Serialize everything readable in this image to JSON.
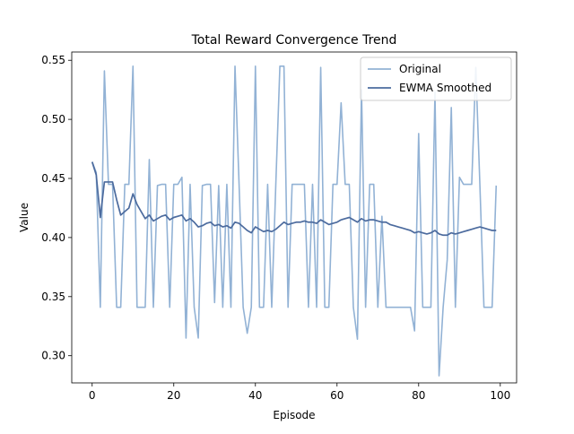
{
  "chart_data": {
    "type": "line",
    "title": "Total Reward Convergence Trend",
    "xlabel": "Episode",
    "ylabel": "Value",
    "xlim": [
      -5,
      104
    ],
    "ylim": [
      0.277,
      0.557
    ],
    "xticks": [
      0,
      20,
      40,
      60,
      80,
      100
    ],
    "xtick_labels": [
      "0",
      "20",
      "40",
      "60",
      "80",
      "100"
    ],
    "yticks": [
      0.3,
      0.35,
      0.4,
      0.45,
      0.5,
      0.55
    ],
    "ytick_labels": [
      "0.30",
      "0.35",
      "0.40",
      "0.45",
      "0.50",
      "0.55"
    ],
    "grid": false,
    "legend": "top-right",
    "series": [
      {
        "name": "Original",
        "color": "#92b2d5",
        "x": [
          0,
          1,
          2,
          3,
          4,
          5,
          6,
          7,
          8,
          9,
          10,
          11,
          12,
          13,
          14,
          15,
          16,
          17,
          18,
          19,
          20,
          21,
          22,
          23,
          24,
          25,
          26,
          27,
          28,
          29,
          30,
          31,
          32,
          33,
          34,
          35,
          36,
          37,
          38,
          39,
          40,
          41,
          42,
          43,
          44,
          45,
          46,
          47,
          48,
          49,
          50,
          51,
          52,
          53,
          54,
          55,
          56,
          57,
          58,
          59,
          60,
          61,
          62,
          63,
          64,
          65,
          66,
          67,
          68,
          69,
          70,
          71,
          72,
          73,
          74,
          75,
          76,
          77,
          78,
          79,
          80,
          81,
          82,
          83,
          84,
          85,
          86,
          87,
          88,
          89,
          90,
          91,
          92,
          93,
          94,
          95,
          96,
          97,
          98,
          99
        ],
        "values": [
          0.464,
          0.455,
          0.341,
          0.541,
          0.445,
          0.445,
          0.341,
          0.341,
          0.445,
          0.445,
          0.545,
          0.341,
          0.341,
          0.341,
          0.466,
          0.341,
          0.444,
          0.445,
          0.445,
          0.341,
          0.445,
          0.445,
          0.451,
          0.315,
          0.445,
          0.341,
          0.315,
          0.444,
          0.445,
          0.445,
          0.345,
          0.444,
          0.341,
          0.445,
          0.341,
          0.545,
          0.445,
          0.341,
          0.319,
          0.341,
          0.545,
          0.341,
          0.341,
          0.445,
          0.341,
          0.445,
          0.545,
          0.545,
          0.341,
          0.445,
          0.445,
          0.445,
          0.445,
          0.341,
          0.445,
          0.341,
          0.544,
          0.341,
          0.341,
          0.445,
          0.445,
          0.514,
          0.445,
          0.445,
          0.341,
          0.314,
          0.525,
          0.341,
          0.445,
          0.445,
          0.341,
          0.418,
          0.341,
          0.341,
          0.341,
          0.341,
          0.341,
          0.341,
          0.341,
          0.321,
          0.488,
          0.341,
          0.341,
          0.341,
          0.523,
          0.283,
          0.341,
          0.381,
          0.51,
          0.341,
          0.451,
          0.445,
          0.445,
          0.445,
          0.544,
          0.445,
          0.341,
          0.341,
          0.341,
          0.444
        ]
      },
      {
        "name": "EWMA Smoothed",
        "color": "#4c6b9e",
        "x": [
          0,
          1,
          2,
          3,
          4,
          5,
          6,
          7,
          8,
          9,
          10,
          11,
          12,
          13,
          14,
          15,
          16,
          17,
          18,
          19,
          20,
          21,
          22,
          23,
          24,
          25,
          26,
          27,
          28,
          29,
          30,
          31,
          32,
          33,
          34,
          35,
          36,
          37,
          38,
          39,
          40,
          41,
          42,
          43,
          44,
          45,
          46,
          47,
          48,
          49,
          50,
          51,
          52,
          53,
          54,
          55,
          56,
          57,
          58,
          59,
          60,
          61,
          62,
          63,
          64,
          65,
          66,
          67,
          68,
          69,
          70,
          71,
          72,
          73,
          74,
          75,
          76,
          77,
          78,
          79,
          80,
          81,
          82,
          83,
          84,
          85,
          86,
          87,
          88,
          89,
          90,
          91,
          92,
          93,
          94,
          95,
          96,
          97,
          98,
          99
        ],
        "values": [
          0.464,
          0.453,
          0.417,
          0.447,
          0.447,
          0.447,
          0.432,
          0.419,
          0.422,
          0.425,
          0.437,
          0.428,
          0.422,
          0.416,
          0.419,
          0.414,
          0.416,
          0.418,
          0.419,
          0.415,
          0.417,
          0.418,
          0.419,
          0.414,
          0.416,
          0.413,
          0.409,
          0.41,
          0.412,
          0.413,
          0.41,
          0.411,
          0.409,
          0.41,
          0.408,
          0.413,
          0.412,
          0.409,
          0.406,
          0.404,
          0.409,
          0.407,
          0.405,
          0.406,
          0.405,
          0.407,
          0.41,
          0.413,
          0.411,
          0.412,
          0.413,
          0.413,
          0.414,
          0.413,
          0.413,
          0.412,
          0.415,
          0.413,
          0.411,
          0.412,
          0.413,
          0.415,
          0.416,
          0.417,
          0.415,
          0.413,
          0.416,
          0.414,
          0.415,
          0.415,
          0.414,
          0.413,
          0.413,
          0.411,
          0.41,
          0.409,
          0.408,
          0.407,
          0.406,
          0.404,
          0.405,
          0.404,
          0.403,
          0.404,
          0.406,
          0.403,
          0.402,
          0.402,
          0.404,
          0.403,
          0.404,
          0.405,
          0.406,
          0.407,
          0.408,
          0.409,
          0.408,
          0.407,
          0.406,
          0.406
        ]
      }
    ]
  }
}
